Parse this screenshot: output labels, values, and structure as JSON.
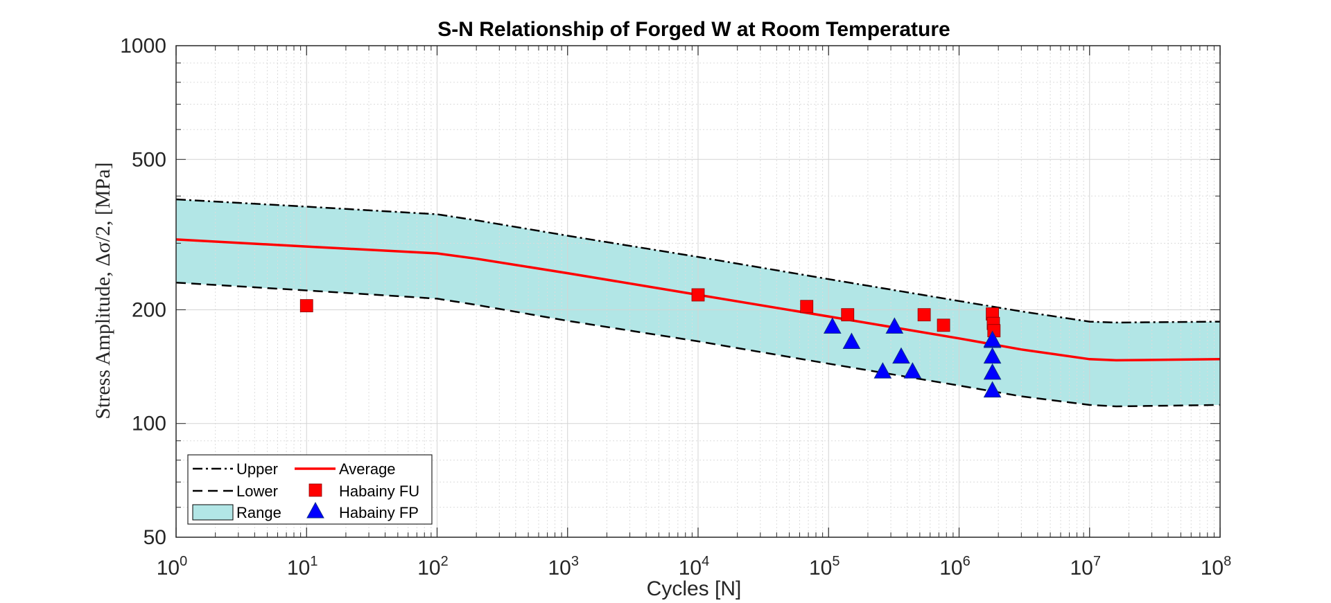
{
  "chart_data": {
    "type": "line",
    "title": "S-N Relationship of Forged W at Room Temperature",
    "xlabel": "Cycles [N]",
    "ylabel": "Stress Amplitude, Δσ/2, [MPa]",
    "xscale": "log",
    "yscale": "log",
    "xlim": [
      1,
      100000000
    ],
    "ylim": [
      50,
      1000
    ],
    "grid": true,
    "legend_position": "bottom-left",
    "x_tick_base": "10",
    "x_tick_exponents": [
      "0",
      "1",
      "2",
      "3",
      "4",
      "5",
      "6",
      "7",
      "8"
    ],
    "y_tick_labels": [
      "50",
      "100",
      "200",
      "500",
      "1000"
    ],
    "series": [
      {
        "name": "Upper",
        "style": "dash-dot",
        "color": "#000000",
        "x": [
          1,
          10,
          100,
          200,
          1000,
          10000,
          100000,
          1000000,
          3000000,
          10000000,
          16000000,
          100000000
        ],
        "y": [
          392,
          375,
          358,
          345,
          314,
          276,
          241,
          211,
          198,
          186,
          185,
          186
        ]
      },
      {
        "name": "Lower",
        "style": "dashed",
        "color": "#000000",
        "x": [
          1,
          10,
          100,
          200,
          1000,
          10000,
          100000,
          1000000,
          3000000,
          10000000,
          16000000,
          100000000
        ],
        "y": [
          236,
          225,
          214,
          206,
          187,
          165,
          144,
          126,
          118,
          112,
          111,
          112
        ]
      },
      {
        "name": "Average",
        "style": "solid",
        "color": "#ff0000",
        "x": [
          1,
          10,
          100,
          200,
          1000,
          10000,
          100000,
          1000000,
          3000000,
          10000000,
          16000000,
          100000000
        ],
        "y": [
          307,
          294,
          282,
          273,
          250,
          219,
          192,
          168,
          157,
          148,
          147,
          148
        ]
      },
      {
        "name": "Range",
        "type": "band",
        "color": "#b2e6e6",
        "between": [
          "Lower",
          "Upper"
        ]
      },
      {
        "name": "Habainy FU",
        "type": "scatter",
        "marker": "square",
        "color": "#ff0000",
        "x": [
          10,
          10000,
          68000,
          140000,
          540000,
          760000,
          1800000,
          1830000,
          1850000
        ],
        "y": [
          205,
          219,
          204,
          194,
          194,
          182,
          195,
          184,
          176
        ]
      },
      {
        "name": "Habainy FP",
        "type": "scatter",
        "marker": "triangle",
        "color": "#0000ff",
        "x": [
          107000,
          150000,
          260000,
          320000,
          360000,
          440000,
          1800000,
          1800000,
          1800000,
          1800000,
          1800000
        ],
        "y": [
          180,
          164,
          137,
          180,
          150,
          137,
          165,
          150,
          136,
          122,
          166
        ]
      }
    ]
  }
}
